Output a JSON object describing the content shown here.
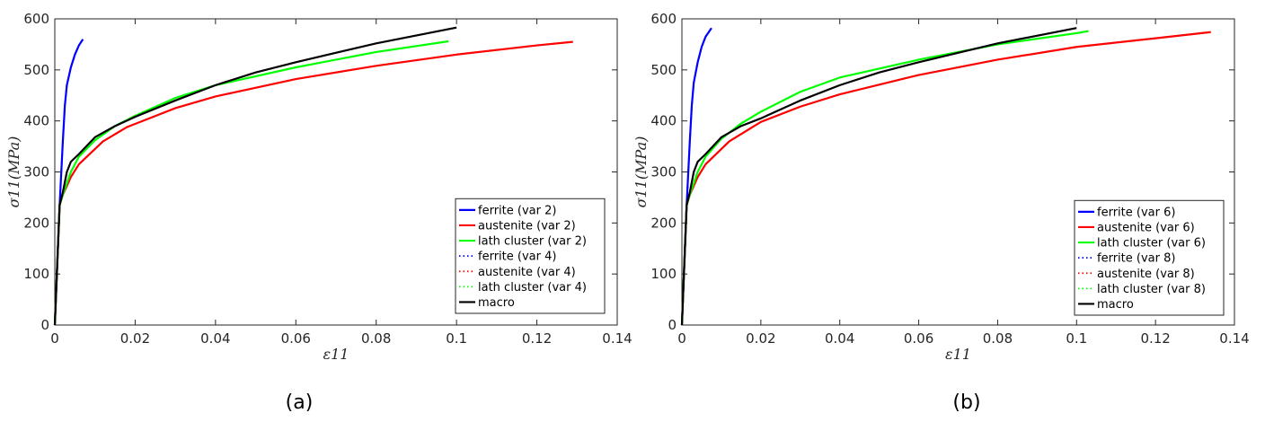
{
  "chart_data": [
    {
      "type": "line",
      "caption": "(a)",
      "xlabel": "ε11",
      "ylabel": "σ11(MPa)",
      "xlim": [
        0,
        0.14
      ],
      "ylim": [
        0,
        600
      ],
      "xticks": [
        0,
        0.02,
        0.04,
        0.06,
        0.08,
        0.1,
        0.12,
        0.14
      ],
      "xtick_labels": [
        "0",
        "0.02",
        "0.04",
        "0.06",
        "0.08",
        "0.1",
        "0.12",
        "0.14"
      ],
      "yticks": [
        0,
        100,
        200,
        300,
        400,
        500,
        600
      ],
      "ytick_labels": [
        "0",
        "100",
        "200",
        "300",
        "400",
        "500",
        "600"
      ],
      "grid": false,
      "legend_position": "bottom-right",
      "series": [
        {
          "name": "ferrite (var 2)",
          "color": "#0000ff",
          "style": "solid",
          "x": [
            0,
            0.0012,
            0.002,
            0.0025,
            0.003,
            0.004,
            0.005,
            0.006,
            0.007
          ],
          "y": [
            0,
            235,
            360,
            430,
            470,
            505,
            530,
            548,
            560
          ]
        },
        {
          "name": "austenite (var 2)",
          "color": "#ff0000",
          "style": "solid",
          "x": [
            0,
            0.0012,
            0.002,
            0.004,
            0.006,
            0.008,
            0.012,
            0.018,
            0.03,
            0.04,
            0.06,
            0.08,
            0.1,
            0.12,
            0.129
          ],
          "y": [
            0,
            235,
            255,
            290,
            315,
            330,
            360,
            388,
            425,
            448,
            482,
            508,
            530,
            548,
            555
          ]
        },
        {
          "name": "lath cluster (var 2)",
          "color": "#00ff00",
          "style": "solid",
          "x": [
            0,
            0.0012,
            0.002,
            0.004,
            0.006,
            0.01,
            0.015,
            0.02,
            0.03,
            0.04,
            0.06,
            0.08,
            0.098
          ],
          "y": [
            0,
            235,
            255,
            300,
            330,
            362,
            390,
            410,
            445,
            470,
            505,
            535,
            556
          ]
        },
        {
          "name": "ferrite (var 4)",
          "color": "#0000ff",
          "style": "dotted",
          "x": [
            0,
            0.0012,
            0.002,
            0.0025,
            0.003,
            0.004,
            0.005,
            0.006,
            0.007
          ],
          "y": [
            0,
            235,
            360,
            430,
            470,
            505,
            530,
            548,
            560
          ]
        },
        {
          "name": "austenite (var 4)",
          "color": "#ff0000",
          "style": "dotted",
          "x": [
            0,
            0.0012,
            0.002,
            0.004,
            0.006,
            0.008,
            0.012,
            0.018,
            0.03,
            0.04,
            0.06,
            0.08,
            0.1,
            0.12,
            0.129
          ],
          "y": [
            0,
            235,
            255,
            290,
            315,
            330,
            360,
            388,
            425,
            448,
            482,
            508,
            530,
            548,
            555
          ]
        },
        {
          "name": "lath cluster (var 4)",
          "color": "#00ff00",
          "style": "dotted",
          "x": [
            0,
            0.0012,
            0.002,
            0.004,
            0.006,
            0.01,
            0.015,
            0.02,
            0.03,
            0.04,
            0.06,
            0.08,
            0.098
          ],
          "y": [
            0,
            235,
            255,
            300,
            330,
            362,
            390,
            410,
            445,
            470,
            505,
            535,
            556
          ]
        },
        {
          "name": "macro",
          "color": "#000000",
          "style": "solid",
          "x": [
            0,
            0.0012,
            0.002,
            0.003,
            0.004,
            0.006,
            0.01,
            0.015,
            0.02,
            0.03,
            0.04,
            0.05,
            0.06,
            0.08,
            0.1
          ],
          "y": [
            0,
            235,
            260,
            300,
            320,
            335,
            368,
            390,
            408,
            440,
            470,
            495,
            515,
            552,
            583
          ]
        }
      ]
    },
    {
      "type": "line",
      "caption": "(b)",
      "xlabel": "ε11",
      "ylabel": "σ11(MPa)",
      "xlim": [
        0,
        0.14
      ],
      "ylim": [
        0,
        600
      ],
      "xticks": [
        0,
        0.02,
        0.04,
        0.06,
        0.08,
        0.1,
        0.12,
        0.14
      ],
      "xtick_labels": [
        "0",
        "0.02",
        "0.04",
        "0.06",
        "0.08",
        "0.1",
        "0.12",
        "0.14"
      ],
      "yticks": [
        0,
        100,
        200,
        300,
        400,
        500,
        600
      ],
      "ytick_labels": [
        "0",
        "100",
        "200",
        "300",
        "400",
        "500",
        "600"
      ],
      "grid": false,
      "legend_position": "bottom-right",
      "series": [
        {
          "name": "ferrite (var 6)",
          "color": "#0000ff",
          "style": "solid",
          "x": [
            0,
            0.0012,
            0.002,
            0.0025,
            0.003,
            0.004,
            0.005,
            0.006,
            0.0075
          ],
          "y": [
            0,
            235,
            360,
            430,
            475,
            515,
            545,
            565,
            582
          ]
        },
        {
          "name": "austenite (var 6)",
          "color": "#ff0000",
          "style": "solid",
          "x": [
            0,
            0.0012,
            0.002,
            0.004,
            0.006,
            0.008,
            0.012,
            0.02,
            0.03,
            0.04,
            0.06,
            0.08,
            0.1,
            0.12,
            0.134
          ],
          "y": [
            0,
            235,
            255,
            290,
            315,
            330,
            360,
            398,
            428,
            452,
            490,
            520,
            545,
            562,
            574
          ]
        },
        {
          "name": "lath cluster (var 6)",
          "color": "#00ff00",
          "style": "solid",
          "x": [
            0,
            0.0012,
            0.002,
            0.004,
            0.006,
            0.01,
            0.015,
            0.02,
            0.03,
            0.04,
            0.06,
            0.08,
            0.1,
            0.103
          ],
          "y": [
            0,
            235,
            255,
            300,
            330,
            365,
            395,
            418,
            457,
            485,
            520,
            550,
            572,
            576
          ]
        },
        {
          "name": "ferrite (var 8)",
          "color": "#0000ff",
          "style": "dotted",
          "x": [
            0,
            0.0012,
            0.002,
            0.0025,
            0.003,
            0.004,
            0.005,
            0.006,
            0.0075
          ],
          "y": [
            0,
            235,
            360,
            430,
            475,
            515,
            545,
            565,
            582
          ]
        },
        {
          "name": "austenite (var 8)",
          "color": "#ff0000",
          "style": "dotted",
          "x": [
            0,
            0.0012,
            0.002,
            0.004,
            0.006,
            0.008,
            0.012,
            0.02,
            0.03,
            0.04,
            0.06,
            0.08,
            0.1,
            0.12,
            0.134
          ],
          "y": [
            0,
            235,
            255,
            290,
            315,
            330,
            360,
            398,
            428,
            452,
            490,
            520,
            545,
            562,
            574
          ]
        },
        {
          "name": "lath cluster (var 8)",
          "color": "#00ff00",
          "style": "dotted",
          "x": [
            0,
            0.0012,
            0.002,
            0.004,
            0.006,
            0.01,
            0.015,
            0.02,
            0.03,
            0.04,
            0.06,
            0.08,
            0.1,
            0.103
          ],
          "y": [
            0,
            235,
            255,
            300,
            330,
            365,
            395,
            418,
            457,
            485,
            520,
            550,
            572,
            576
          ]
        },
        {
          "name": "macro",
          "color": "#000000",
          "style": "solid",
          "x": [
            0,
            0.0012,
            0.002,
            0.003,
            0.004,
            0.006,
            0.01,
            0.015,
            0.02,
            0.03,
            0.04,
            0.05,
            0.06,
            0.08,
            0.1
          ],
          "y": [
            0,
            235,
            260,
            300,
            320,
            335,
            368,
            390,
            405,
            440,
            470,
            495,
            515,
            552,
            582
          ]
        }
      ]
    }
  ]
}
